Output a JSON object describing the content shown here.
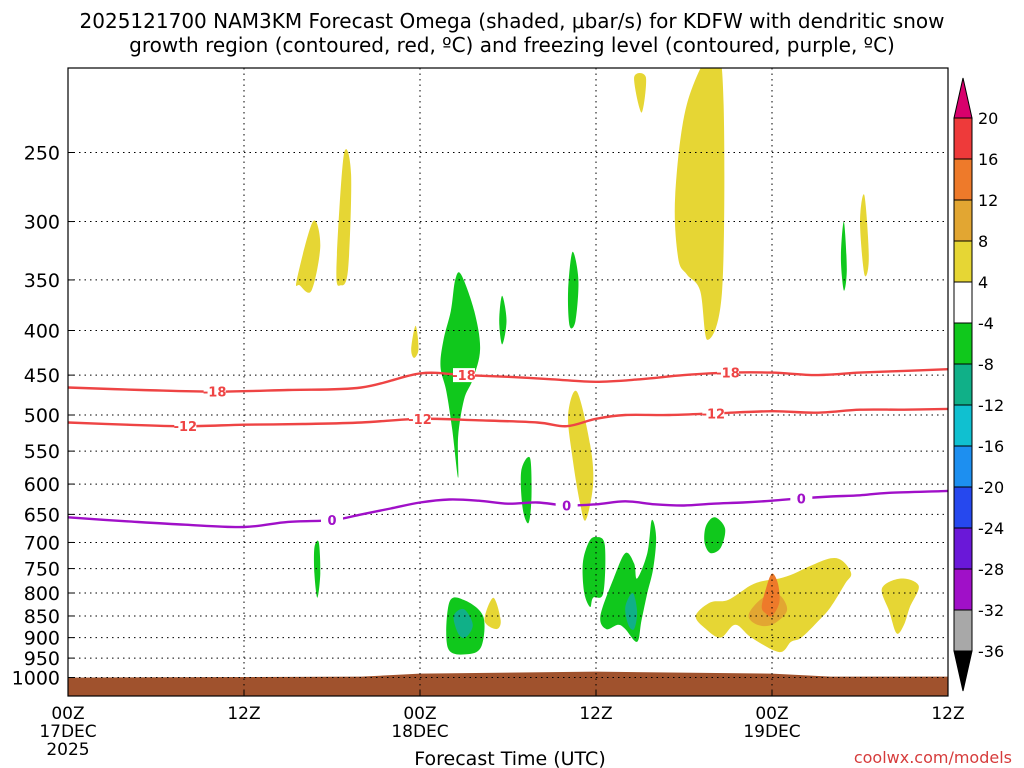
{
  "title_line1": "2025121700 NAM3KM Forecast Omega (shaded, μbar/s) for KDFW with dendritic snow",
  "title_line2": "growth region (contoured, red, ºC) and freezing level (contoured, purple, ºC)",
  "xlabel": "Forecast Time (UTC)",
  "credit": "coolwx.com/models",
  "chart_data": {
    "type": "heatmap",
    "xlabel": "Forecast Time (UTC)",
    "ylabel": "",
    "x_range_hours": [
      0,
      60
    ],
    "y_scale": "log",
    "y_range_hpa": [
      1050,
      200
    ],
    "x_ticks": [
      {
        "hour": 0,
        "label": "00Z",
        "sub": "17DEC",
        "sub2": "2025"
      },
      {
        "hour": 12,
        "label": "12Z",
        "sub": "",
        "sub2": ""
      },
      {
        "hour": 24,
        "label": "00Z",
        "sub": "18DEC",
        "sub2": ""
      },
      {
        "hour": 36,
        "label": "12Z",
        "sub": "",
        "sub2": ""
      },
      {
        "hour": 48,
        "label": "00Z",
        "sub": "19DEC",
        "sub2": ""
      },
      {
        "hour": 60,
        "label": "12Z",
        "sub": "",
        "sub2": ""
      }
    ],
    "y_ticks": [
      250,
      300,
      350,
      400,
      450,
      500,
      550,
      600,
      650,
      700,
      750,
      800,
      850,
      900,
      950,
      1000
    ],
    "grid": true,
    "colorbar": {
      "labels": [
        "20",
        "16",
        "12",
        "8",
        "4",
        "-4",
        "-8",
        "-12",
        "-16",
        "-20",
        "-24",
        "-28",
        "-32",
        "-36"
      ],
      "colors": [
        "#d8006c",
        "#ee3a3a",
        "#ee7a2a",
        "#e2a632",
        "#e6d634",
        "#ffffff",
        "#10c81c",
        "#10b088",
        "#10c0d0",
        "#1d8ff0",
        "#2648ee",
        "#6a18d8",
        "#a010c8",
        "#a8a8a8",
        "#000000"
      ]
    },
    "contours": [
      {
        "name": "-18",
        "color": "#ee4444",
        "label": "-18",
        "points": [
          [
            0,
            465
          ],
          [
            5,
            468
          ],
          [
            10,
            470
          ],
          [
            15,
            468
          ],
          [
            20,
            465
          ],
          [
            24,
            448
          ],
          [
            27,
            450
          ],
          [
            30,
            452
          ],
          [
            33,
            455
          ],
          [
            36,
            458
          ],
          [
            39,
            455
          ],
          [
            42,
            450
          ],
          [
            45,
            447
          ],
          [
            48,
            447
          ],
          [
            51,
            450
          ],
          [
            54,
            447
          ],
          [
            57,
            445
          ],
          [
            60,
            443
          ]
        ]
      },
      {
        "name": "-12",
        "color": "#ee4444",
        "label": "-12",
        "points": [
          [
            0,
            510
          ],
          [
            4,
            513
          ],
          [
            8,
            515
          ],
          [
            12,
            513
          ],
          [
            16,
            512
          ],
          [
            20,
            510
          ],
          [
            24,
            505
          ],
          [
            28,
            507
          ],
          [
            32,
            510
          ],
          [
            34,
            515
          ],
          [
            36,
            505
          ],
          [
            38,
            500
          ],
          [
            41,
            500
          ],
          [
            44,
            498
          ],
          [
            48,
            495
          ],
          [
            51,
            497
          ],
          [
            54,
            493
          ],
          [
            57,
            493
          ],
          [
            60,
            492
          ]
        ]
      },
      {
        "name": "0",
        "color": "#a010c8",
        "label": "0",
        "points": [
          [
            0,
            655
          ],
          [
            4,
            662
          ],
          [
            8,
            668
          ],
          [
            12,
            672
          ],
          [
            15,
            663
          ],
          [
            18,
            660
          ],
          [
            20,
            650
          ],
          [
            22,
            640
          ],
          [
            24,
            630
          ],
          [
            26,
            625
          ],
          [
            28,
            627
          ],
          [
            30,
            632
          ],
          [
            32,
            630
          ],
          [
            34,
            635
          ],
          [
            36,
            633
          ],
          [
            38,
            628
          ],
          [
            40,
            633
          ],
          [
            42,
            635
          ],
          [
            44,
            632
          ],
          [
            46,
            630
          ],
          [
            48,
            627
          ],
          [
            50,
            623
          ],
          [
            52,
            620
          ],
          [
            54,
            618
          ],
          [
            56,
            614
          ],
          [
            60,
            611
          ]
        ]
      }
    ],
    "omega_regions": [
      {
        "value": 6,
        "color": "#e6d634",
        "points": [
          [
            15.6,
            350
          ],
          [
            16.7,
            300
          ],
          [
            17.2,
            320
          ],
          [
            16.6,
            360
          ],
          [
            15.8,
            355
          ]
        ]
      },
      {
        "value": 6,
        "color": "#e6d634",
        "points": [
          [
            18.3,
            340
          ],
          [
            18.8,
            252
          ],
          [
            19.3,
            265
          ],
          [
            19.1,
            340
          ],
          [
            18.6,
            355
          ]
        ]
      },
      {
        "value": 6,
        "color": "#e6d634",
        "points": [
          [
            23.4,
            420
          ],
          [
            23.7,
            395
          ],
          [
            23.9,
            420
          ],
          [
            23.6,
            430
          ]
        ]
      },
      {
        "value": 6,
        "color": "#e6d634",
        "points": [
          [
            34.1,
            500
          ],
          [
            34.7,
            470
          ],
          [
            35.6,
            540
          ],
          [
            35.8,
            600
          ],
          [
            35.3,
            660
          ],
          [
            34.9,
            630
          ],
          [
            34.4,
            560
          ]
        ]
      },
      {
        "value": 6,
        "color": "#e6d634",
        "points": [
          [
            41.4,
            280
          ],
          [
            42.2,
            220
          ],
          [
            44.1,
            190
          ],
          [
            44.7,
            220
          ],
          [
            44.6,
            360
          ],
          [
            43.6,
            410
          ],
          [
            43.1,
            360
          ],
          [
            42.2,
            345
          ],
          [
            41.6,
            330
          ]
        ]
      },
      {
        "value": 6,
        "color": "#e6d634",
        "points": [
          [
            38.6,
            205
          ],
          [
            39.4,
            205
          ],
          [
            39.1,
            225
          ]
        ]
      },
      {
        "value": 6,
        "color": "#e6d634",
        "points": [
          [
            54.0,
            300
          ],
          [
            54.3,
            280
          ],
          [
            54.6,
            330
          ],
          [
            54.3,
            345
          ]
        ]
      },
      {
        "value": 6,
        "color": "#e6d634",
        "points": [
          [
            42.8,
            850
          ],
          [
            43.8,
            820
          ],
          [
            45.0,
            815
          ],
          [
            46.5,
            785
          ],
          [
            47.4,
            775
          ],
          [
            48.5,
            770
          ],
          [
            49.5,
            760
          ],
          [
            50.6,
            745
          ],
          [
            52.0,
            730
          ],
          [
            52.8,
            735
          ],
          [
            53.4,
            760
          ],
          [
            53.0,
            780
          ],
          [
            52.0,
            830
          ],
          [
            51.2,
            860
          ],
          [
            50.0,
            900
          ],
          [
            49.3,
            910
          ],
          [
            48.5,
            935
          ],
          [
            46.6,
            900
          ],
          [
            45.5,
            870
          ],
          [
            44.5,
            900
          ],
          [
            43.5,
            880
          ]
        ]
      },
      {
        "value": 6,
        "color": "#e6d634",
        "points": [
          [
            55.5,
            790
          ],
          [
            56.8,
            770
          ],
          [
            58.0,
            785
          ],
          [
            57.4,
            830
          ],
          [
            57.0,
            870
          ],
          [
            56.5,
            890
          ],
          [
            56.0,
            840
          ]
        ]
      },
      {
        "value": 6,
        "color": "#e6d634",
        "points": [
          [
            28.4,
            860
          ],
          [
            29.0,
            810
          ],
          [
            29.5,
            860
          ],
          [
            29.2,
            880
          ]
        ]
      },
      {
        "value": 10,
        "color": "#e2a632",
        "points": [
          [
            46.4,
            850
          ],
          [
            47.0,
            820
          ],
          [
            48.0,
            800
          ],
          [
            48.7,
            810
          ],
          [
            49.0,
            840
          ],
          [
            48.0,
            870
          ],
          [
            47.0,
            870
          ]
        ]
      },
      {
        "value": 14,
        "color": "#ee7a2a",
        "points": [
          [
            47.3,
            830
          ],
          [
            47.6,
            790
          ],
          [
            48.0,
            760
          ],
          [
            48.4,
            780
          ],
          [
            48.5,
            820
          ],
          [
            48.0,
            850
          ],
          [
            47.6,
            845
          ]
        ]
      },
      {
        "value": -6,
        "color": "#10c81c",
        "points": [
          [
            26.1,
            380
          ],
          [
            26.4,
            350
          ],
          [
            26.8,
            345
          ],
          [
            27.7,
            380
          ],
          [
            28.1,
            420
          ],
          [
            27.6,
            455
          ],
          [
            27.0,
            480
          ],
          [
            26.6,
            530
          ],
          [
            26.6,
            590
          ],
          [
            26.2,
            520
          ],
          [
            25.8,
            470
          ],
          [
            25.4,
            440
          ],
          [
            25.6,
            410
          ]
        ]
      },
      {
        "value": -6,
        "color": "#10c81c",
        "points": [
          [
            29.4,
            390
          ],
          [
            29.6,
            365
          ],
          [
            29.9,
            390
          ],
          [
            29.6,
            415
          ]
        ]
      },
      {
        "value": -6,
        "color": "#10c81c",
        "points": [
          [
            34.1,
            360
          ],
          [
            34.4,
            325
          ],
          [
            34.8,
            350
          ],
          [
            34.6,
            390
          ],
          [
            34.2,
            395
          ]
        ]
      },
      {
        "value": -6,
        "color": "#10c81c",
        "points": [
          [
            30.9,
            580
          ],
          [
            31.5,
            560
          ],
          [
            31.6,
            620
          ],
          [
            31.4,
            665
          ],
          [
            31.0,
            640
          ]
        ]
      },
      {
        "value": -6,
        "color": "#10c81c",
        "points": [
          [
            16.8,
            710
          ],
          [
            17.1,
            700
          ],
          [
            17.2,
            760
          ],
          [
            17.0,
            810
          ],
          [
            16.8,
            760
          ]
        ]
      },
      {
        "value": -6,
        "color": "#10c81c",
        "points": [
          [
            26.0,
            820
          ],
          [
            27.0,
            815
          ],
          [
            28.3,
            850
          ],
          [
            28.2,
            920
          ],
          [
            27.3,
            940
          ],
          [
            25.9,
            925
          ]
        ]
      },
      {
        "value": -6,
        "color": "#10c81c",
        "points": [
          [
            35.1,
            740
          ],
          [
            35.5,
            700
          ],
          [
            36.0,
            690
          ],
          [
            36.6,
            705
          ],
          [
            36.5,
            800
          ],
          [
            35.8,
            810
          ],
          [
            35.6,
            830
          ],
          [
            35.2,
            800
          ]
        ]
      },
      {
        "value": -6,
        "color": "#10c81c",
        "points": [
          [
            36.3,
            850
          ],
          [
            37.2,
            770
          ],
          [
            38.0,
            720
          ],
          [
            38.6,
            740
          ],
          [
            38.8,
            770
          ],
          [
            39.5,
            720
          ],
          [
            39.8,
            660
          ],
          [
            40.1,
            690
          ],
          [
            39.9,
            750
          ],
          [
            39.5,
            800
          ],
          [
            39.1,
            860
          ],
          [
            38.8,
            910
          ],
          [
            38.0,
            880
          ],
          [
            37.5,
            870
          ],
          [
            36.7,
            880
          ]
        ]
      },
      {
        "value": -6,
        "color": "#10c81c",
        "points": [
          [
            43.5,
            670
          ],
          [
            44.1,
            655
          ],
          [
            44.8,
            675
          ],
          [
            44.5,
            710
          ],
          [
            43.8,
            720
          ],
          [
            43.4,
            700
          ]
        ]
      },
      {
        "value": -6,
        "color": "#10c81c",
        "points": [
          [
            52.7,
            330
          ],
          [
            52.9,
            300
          ],
          [
            53.1,
            340
          ],
          [
            52.9,
            360
          ]
        ]
      },
      {
        "value": -10,
        "color": "#10b088",
        "points": [
          [
            26.3,
            850
          ],
          [
            27.0,
            835
          ],
          [
            27.6,
            870
          ],
          [
            27.1,
            900
          ],
          [
            26.6,
            890
          ]
        ]
      },
      {
        "value": -10,
        "color": "#10b088",
        "points": [
          [
            38.0,
            830
          ],
          [
            38.5,
            800
          ],
          [
            38.8,
            840
          ],
          [
            38.6,
            880
          ],
          [
            38.2,
            870
          ]
        ]
      }
    ],
    "terrain": {
      "color": "#a0522d",
      "top_hpa": 995
    }
  }
}
